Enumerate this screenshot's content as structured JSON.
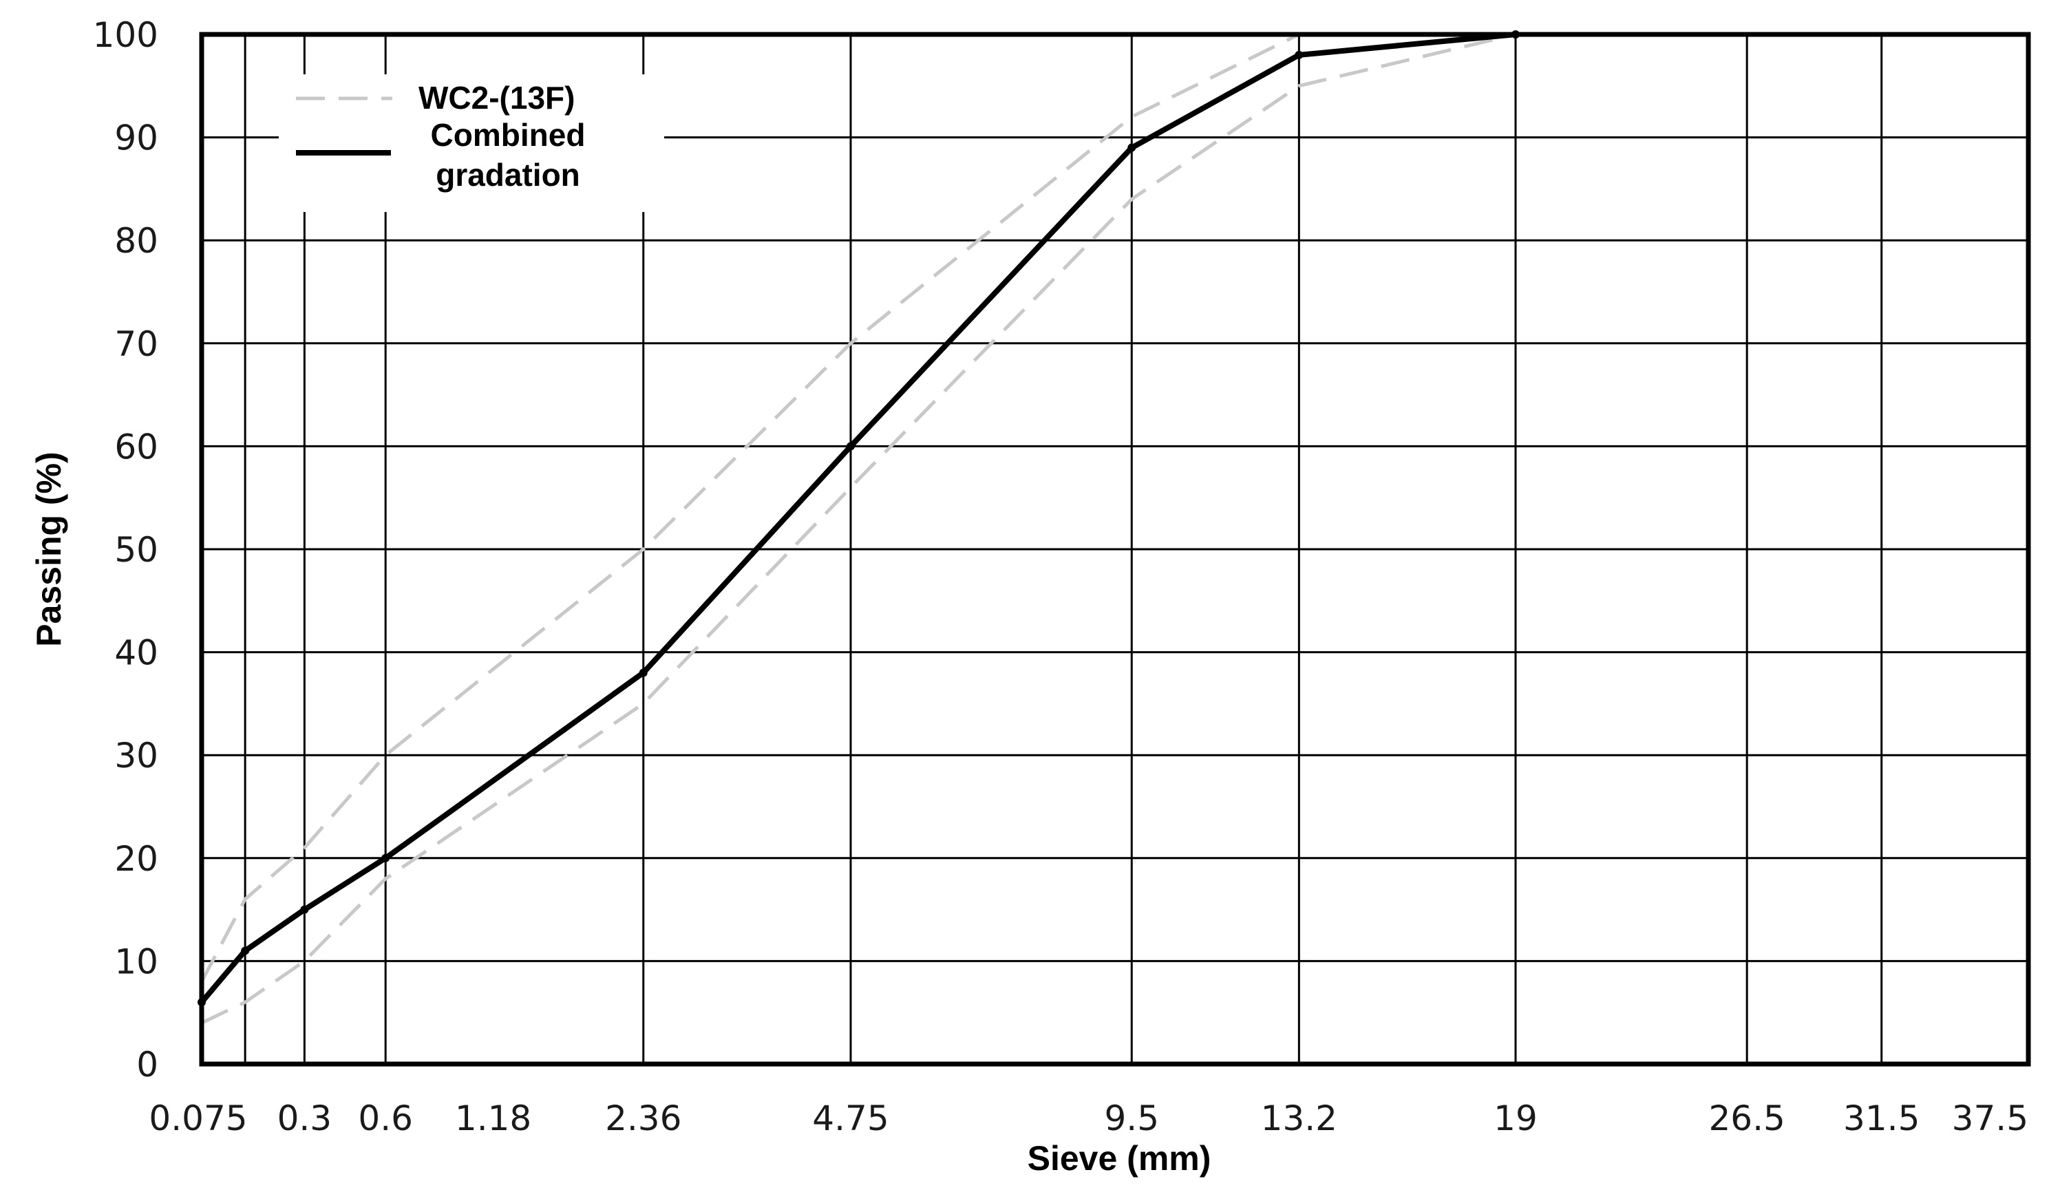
{
  "chart_data": {
    "type": "line",
    "title": "",
    "xlabel": "Sieve (mm)",
    "ylabel": "Passing (%)",
    "ylim": [
      0,
      100
    ],
    "y_ticks": [
      "0",
      "10",
      "20",
      "30",
      "40",
      "50",
      "60",
      "70",
      "80",
      "90",
      "100"
    ],
    "x_tick_labels": [
      "0.075",
      "0.3",
      "0.6",
      "1.18",
      "2.36",
      "4.75",
      "9.5",
      "13.2",
      "19",
      "26.5",
      "31.5",
      "37.5"
    ],
    "x_gridline_sizes": [
      0.075,
      0.15,
      0.3,
      0.6,
      2.36,
      4.75,
      9.5,
      13.2,
      19,
      26.5,
      31.5,
      37.5
    ],
    "x_scale": "sieve size raised to the 0.45 power",
    "grid": true,
    "legend_position": "top-left",
    "series": [
      {
        "name": "WC2-(13F)",
        "style": "dashed",
        "color": "#c8c8c8",
        "upper": {
          "x": [
            0.075,
            0.15,
            0.3,
            0.6,
            2.36,
            4.75,
            9.5,
            13.2,
            19,
            37.5
          ],
          "y": [
            8,
            16,
            21,
            30,
            50,
            70,
            92,
            100,
            100,
            100
          ]
        },
        "lower": {
          "x": [
            0.075,
            0.15,
            0.3,
            0.6,
            2.36,
            4.75,
            9.5,
            13.2,
            19,
            37.5
          ],
          "y": [
            4,
            6,
            10,
            18,
            35,
            56,
            84,
            95,
            100,
            100
          ]
        }
      },
      {
        "name": "Combined gradation",
        "legend_lines": [
          "Combined",
          "gradation"
        ],
        "style": "solid",
        "color": "#000000",
        "x": [
          0.075,
          0.15,
          0.3,
          0.6,
          2.36,
          4.75,
          9.5,
          13.2,
          19
        ],
        "y": [
          6,
          11,
          15,
          20,
          38,
          60,
          89,
          98,
          100
        ]
      }
    ]
  }
}
